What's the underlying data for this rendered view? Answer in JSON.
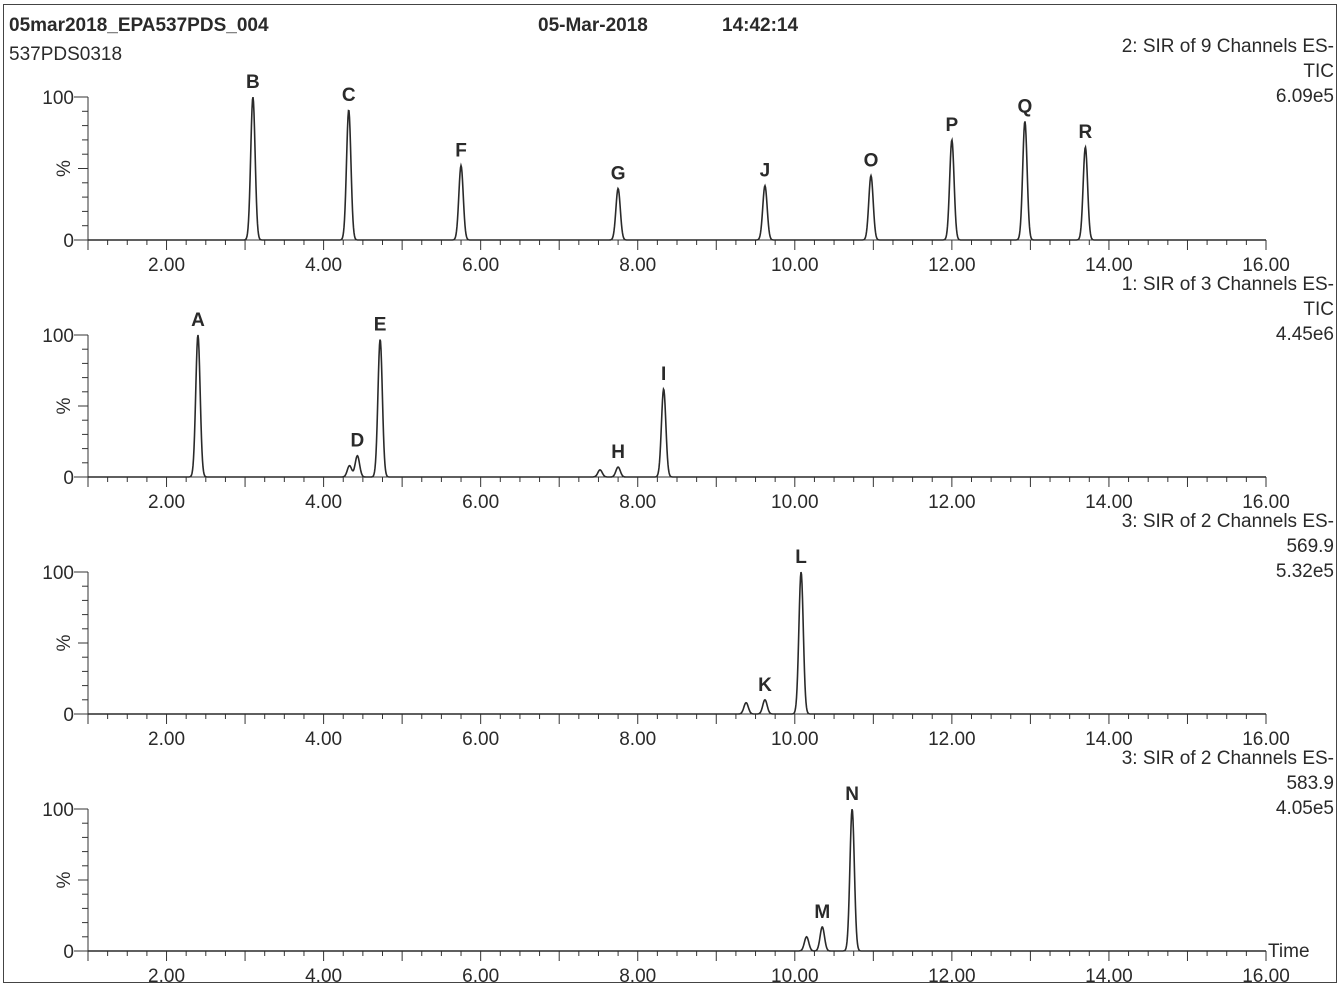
{
  "header": {
    "filename": "05mar2018_EPA537PDS_004",
    "date": "05-Mar-2018",
    "time": "14:42:14",
    "sample": "537PDS0318"
  },
  "axis": {
    "ylabel": "%",
    "xlabel": "Time",
    "xlim": [
      1.0,
      16.0
    ],
    "ylim": [
      0,
      100
    ],
    "x_ticks": [
      "2.00",
      "4.00",
      "6.00",
      "8.00",
      "10.00",
      "12.00",
      "14.00",
      "16.00"
    ],
    "x_tick_values": [
      2,
      4,
      6,
      8,
      10,
      12,
      14,
      16
    ],
    "y_ticks": [
      "0",
      "100"
    ],
    "y_tick_values": [
      0,
      100
    ]
  },
  "chart_data": [
    {
      "type": "line",
      "legend": [
        "2: SIR of 9 Channels ES-",
        "TIC",
        "6.09e5"
      ],
      "peaks": [
        {
          "label": "B",
          "rt": 3.1,
          "height": 100
        },
        {
          "label": "C",
          "rt": 4.32,
          "height": 91
        },
        {
          "label": "F",
          "rt": 5.75,
          "height": 52
        },
        {
          "label": "G",
          "rt": 7.75,
          "height": 36
        },
        {
          "label": "J",
          "rt": 9.62,
          "height": 38
        },
        {
          "label": "O",
          "rt": 10.97,
          "height": 45
        },
        {
          "label": "P",
          "rt": 12.0,
          "height": 70
        },
        {
          "label": "Q",
          "rt": 12.93,
          "height": 83
        },
        {
          "label": "R",
          "rt": 13.7,
          "height": 65
        }
      ],
      "minor_peaks": []
    },
    {
      "type": "line",
      "legend": [
        "1: SIR of 3 Channels ES-",
        "TIC",
        "4.45e6"
      ],
      "peaks": [
        {
          "label": "A",
          "rt": 2.4,
          "height": 100
        },
        {
          "label": "D",
          "rt": 4.43,
          "height": 15
        },
        {
          "label": "E",
          "rt": 4.72,
          "height": 97
        },
        {
          "label": "H",
          "rt": 7.75,
          "height": 7
        },
        {
          "label": "I",
          "rt": 8.33,
          "height": 62
        }
      ],
      "minor_peaks": [
        {
          "rt": 4.33,
          "height": 8
        },
        {
          "rt": 7.52,
          "height": 5
        }
      ]
    },
    {
      "type": "line",
      "legend": [
        "3: SIR of 2 Channels ES-",
        "569.9",
        "5.32e5"
      ],
      "peaks": [
        {
          "label": "K",
          "rt": 9.62,
          "height": 10
        },
        {
          "label": "L",
          "rt": 10.08,
          "height": 100
        }
      ],
      "minor_peaks": [
        {
          "rt": 9.38,
          "height": 8
        }
      ]
    },
    {
      "type": "line",
      "legend": [
        "3: SIR of 2 Channels ES-",
        "583.9",
        "4.05e5"
      ],
      "peaks": [
        {
          "label": "M",
          "rt": 10.35,
          "height": 17
        },
        {
          "label": "N",
          "rt": 10.73,
          "height": 100
        }
      ],
      "minor_peaks": [
        {
          "rt": 10.15,
          "height": 10
        }
      ]
    }
  ]
}
